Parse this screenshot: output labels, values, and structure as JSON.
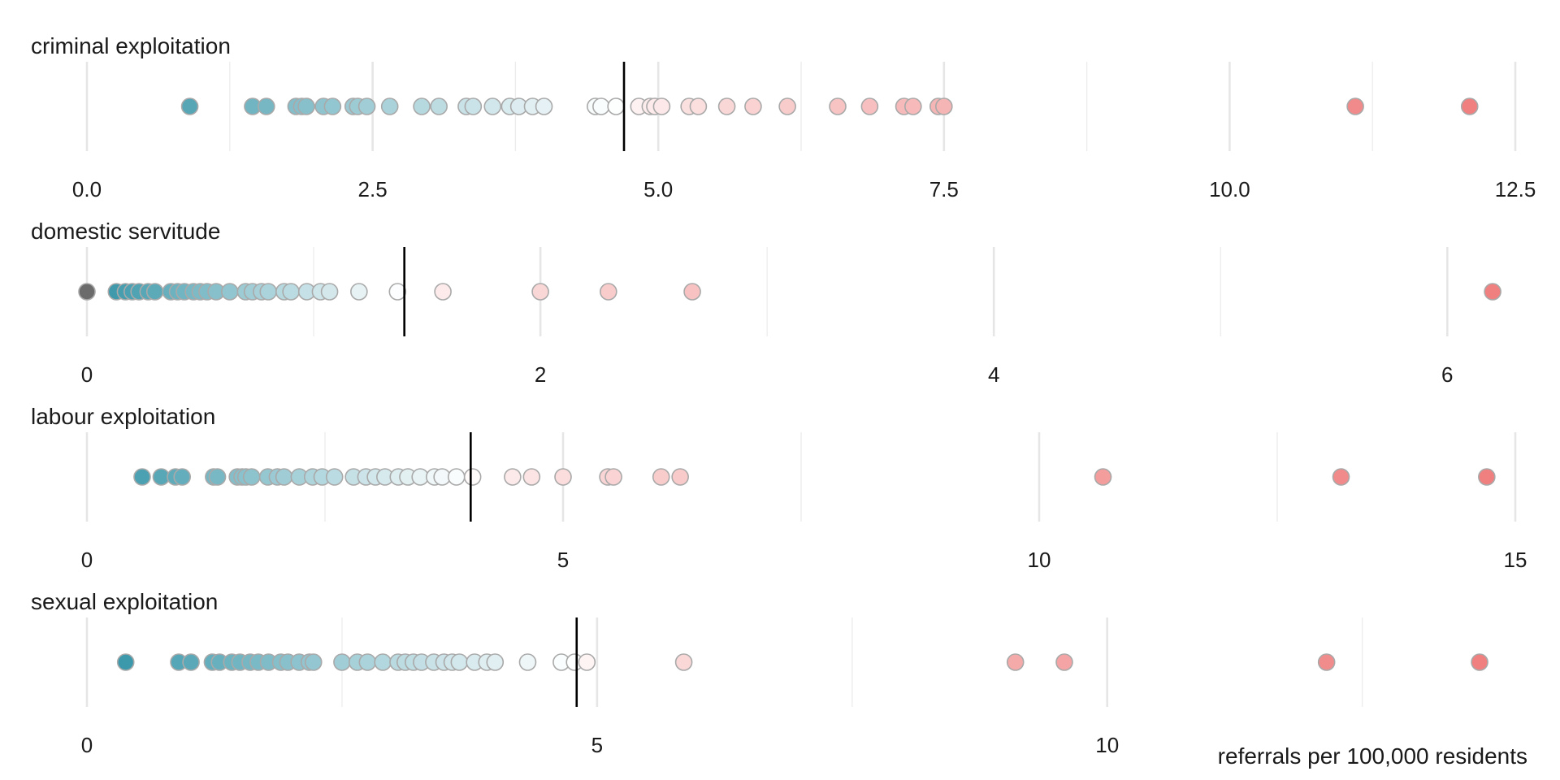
{
  "chart_data": {
    "type": "scatter",
    "xlabel": "referrals per 100,000 residents",
    "color_scale": {
      "low": "#2a8fa3",
      "mid": "#ffffff",
      "high": "#f08080",
      "zero": "#6b6b6b"
    },
    "panels": [
      {
        "title": "criminal exploitation",
        "xlim": [
          0,
          12.5
        ],
        "ticks": [
          0,
          2.5,
          5,
          7.5,
          10,
          12.5
        ],
        "tick_labels": [
          "0.0",
          "2.5",
          "5.0",
          "7.5",
          "10.0",
          "12.5"
        ],
        "minor_ticks": [
          1.25,
          3.75,
          6.25,
          8.75,
          11.25
        ],
        "reference": 4.7,
        "values": [
          0.9,
          1.45,
          1.57,
          1.83,
          1.88,
          1.92,
          2.07,
          2.15,
          2.33,
          2.37,
          2.45,
          2.65,
          2.93,
          3.08,
          3.32,
          3.38,
          3.55,
          3.7,
          3.78,
          3.9,
          4.0,
          4.45,
          4.5,
          4.63,
          4.83,
          4.93,
          4.97,
          5.03,
          5.27,
          5.35,
          5.6,
          5.83,
          6.13,
          6.57,
          6.85,
          7.15,
          7.23,
          7.45,
          7.5,
          11.1,
          12.1
        ]
      },
      {
        "title": "domestic servitude",
        "xlim": [
          0,
          6.3
        ],
        "ticks": [
          0,
          2,
          4,
          6
        ],
        "tick_labels": [
          "0",
          "2",
          "4",
          "6"
        ],
        "minor_ticks": [
          1,
          3,
          5
        ],
        "reference": 1.4,
        "values": [
          0,
          0.13,
          0.17,
          0.2,
          0.23,
          0.27,
          0.3,
          0.37,
          0.4,
          0.43,
          0.47,
          0.5,
          0.53,
          0.57,
          0.63,
          0.7,
          0.73,
          0.77,
          0.8,
          0.87,
          0.9,
          0.97,
          1.03,
          1.07,
          1.2,
          1.37,
          1.57,
          2.0,
          2.3,
          2.67,
          6.2
        ]
      },
      {
        "title": "labour exploitation",
        "xlim": [
          0,
          15
        ],
        "ticks": [
          0,
          5,
          10,
          15
        ],
        "tick_labels": [
          "0",
          "5",
          "10",
          "15"
        ],
        "minor_ticks": [
          2.5,
          7.5,
          12.5
        ],
        "reference": 4.03,
        "values": [
          0.58,
          0.78,
          0.93,
          1.0,
          1.33,
          1.37,
          1.58,
          1.63,
          1.67,
          1.73,
          1.9,
          2.0,
          2.07,
          2.23,
          2.37,
          2.47,
          2.6,
          2.8,
          2.93,
          3.03,
          3.13,
          3.27,
          3.37,
          3.5,
          3.65,
          3.73,
          3.88,
          4.05,
          4.47,
          4.67,
          5.0,
          5.47,
          5.53,
          6.03,
          6.23,
          10.67,
          13.17,
          14.7
        ]
      },
      {
        "title": "sexual exploitation",
        "xlim": [
          0,
          14
        ],
        "ticks": [
          0,
          5,
          10
        ],
        "tick_labels": [
          "0",
          "5",
          "10"
        ],
        "minor_ticks": [
          2.5,
          7.5,
          12.5
        ],
        "reference": 4.8,
        "values": [
          0.38,
          0.9,
          1.02,
          1.23,
          1.3,
          1.42,
          1.5,
          1.6,
          1.68,
          1.78,
          1.9,
          1.97,
          2.08,
          2.18,
          2.22,
          2.5,
          2.65,
          2.75,
          2.9,
          3.05,
          3.12,
          3.2,
          3.28,
          3.4,
          3.5,
          3.58,
          3.65,
          3.8,
          3.92,
          4.0,
          4.32,
          4.65,
          4.78,
          4.9,
          5.85,
          9.1,
          9.58,
          12.15,
          13.65
        ]
      }
    ]
  }
}
